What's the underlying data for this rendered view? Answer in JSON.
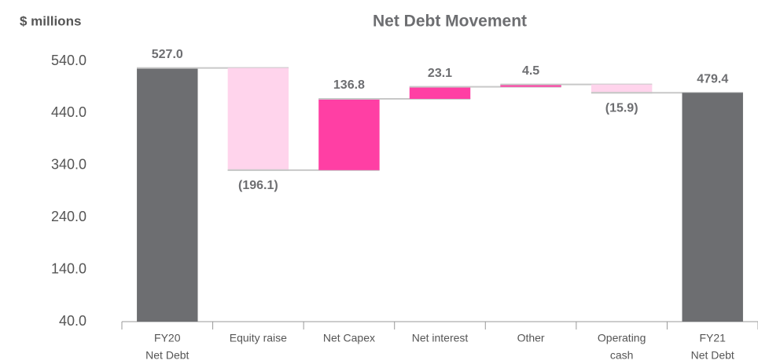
{
  "chart_data": {
    "type": "waterfall",
    "title": "Net Debt Movement",
    "y_label": "$ millions",
    "categories": [
      [
        "FY20",
        "Net Debt"
      ],
      [
        "Equity raise"
      ],
      [
        "Net Capex"
      ],
      [
        "Net interest"
      ],
      [
        "Other"
      ],
      [
        "Operating",
        "cash"
      ],
      [
        "FY21",
        "Net Debt"
      ]
    ],
    "measure": [
      "absolute",
      "relative",
      "relative",
      "relative",
      "relative",
      "relative",
      "absolute"
    ],
    "values": [
      527.0,
      -196.1,
      136.8,
      23.1,
      4.5,
      -15.9,
      479.4
    ],
    "value_labels": [
      "527.0",
      "(196.1)",
      "136.8",
      "23.1",
      "4.5",
      "(15.9)",
      "479.4"
    ],
    "colors": {
      "total": "#6d6e71",
      "increase": "#ff3fa4",
      "decrease": "#ffd4ec"
    },
    "ylim": [
      40,
      540
    ],
    "yticks": [
      {
        "value": 40,
        "label": "40.0"
      },
      {
        "value": 140,
        "label": "140.0"
      },
      {
        "value": 240,
        "label": "240.0"
      },
      {
        "value": 340,
        "label": "340.0"
      },
      {
        "value": 440,
        "label": "440.0"
      },
      {
        "value": 540,
        "label": "540.0"
      }
    ],
    "grid": false
  }
}
